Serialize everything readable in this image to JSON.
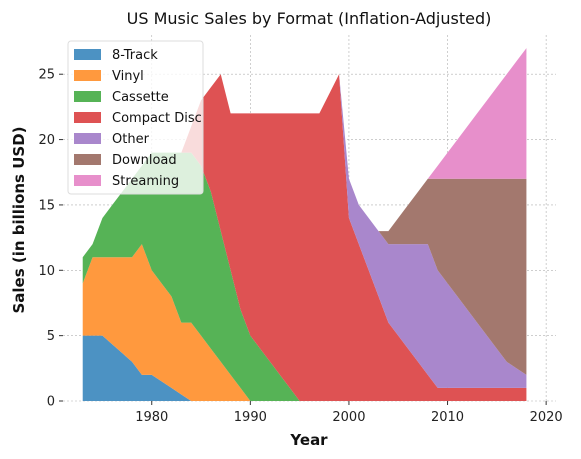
{
  "chart_data": {
    "type": "area",
    "stacked": true,
    "title": "US Music Sales by Format (Inflation-Adjusted)",
    "xlabel": "Year",
    "ylabel": "Sales (in billions USD)",
    "xlim": [
      1971,
      2021
    ],
    "ylim": [
      0,
      28
    ],
    "xticks": [
      1980,
      1990,
      2000,
      2010,
      2020
    ],
    "yticks": [
      0,
      5,
      10,
      15,
      20,
      25
    ],
    "grid": true,
    "legend_position": "top-left",
    "x": [
      1973,
      1974,
      1975,
      1976,
      1977,
      1978,
      1979,
      1980,
      1981,
      1982,
      1983,
      1984,
      1985,
      1986,
      1987,
      1988,
      1989,
      1990,
      1991,
      1992,
      1993,
      1994,
      1995,
      1996,
      1997,
      1998,
      1999,
      2000,
      2001,
      2002,
      2003,
      2004,
      2005,
      2006,
      2007,
      2008,
      2009,
      2010,
      2011,
      2012,
      2013,
      2014,
      2015,
      2016,
      2017,
      2018
    ],
    "series": [
      {
        "name": "8-Track",
        "color": "#4c92c3",
        "values": [
          5,
          5,
          5,
          4.33,
          3.67,
          3,
          2,
          2,
          1.5,
          1,
          0.5,
          0,
          0,
          0,
          0,
          0,
          0,
          0,
          0,
          0,
          0,
          0,
          0,
          0,
          0,
          0,
          0,
          0,
          0,
          0,
          0,
          0,
          0,
          0,
          0,
          0,
          0,
          0,
          0,
          0,
          0,
          0,
          0,
          0,
          0,
          0
        ]
      },
      {
        "name": "Vinyl",
        "color": "#ff993e",
        "values": [
          4,
          6,
          6,
          6.67,
          7.33,
          8,
          10,
          8,
          7.5,
          7,
          5.5,
          6,
          5,
          4,
          3,
          2,
          1,
          0,
          0,
          0,
          0,
          0,
          0,
          0,
          0,
          0,
          0,
          0,
          0,
          0,
          0,
          0,
          0,
          0,
          0,
          0,
          0,
          0,
          0,
          0,
          0,
          0,
          0,
          0,
          0,
          0
        ]
      },
      {
        "name": "Cassette",
        "color": "#56b356",
        "values": [
          2,
          1,
          3,
          4,
          5,
          6,
          6,
          9,
          10,
          11,
          13,
          13,
          13,
          12,
          10,
          8,
          6,
          5,
          4,
          3,
          2,
          1,
          0,
          0,
          0,
          0,
          0,
          0,
          0,
          0,
          0,
          0,
          0,
          0,
          0,
          0,
          0,
          0,
          0,
          0,
          0,
          0,
          0,
          0,
          0,
          0
        ]
      },
      {
        "name": "Compact Disc",
        "color": "#de5253",
        "values": [
          0,
          0,
          0,
          0,
          0,
          0,
          0,
          0,
          0,
          0,
          0,
          2,
          5,
          8,
          12,
          12,
          15,
          17,
          18,
          19,
          20,
          21,
          22,
          22,
          22,
          23.5,
          25,
          14,
          12,
          10,
          8,
          6,
          5,
          4,
          3,
          2,
          1,
          1,
          1,
          1,
          1,
          1,
          1,
          1,
          1,
          1
        ]
      },
      {
        "name": "Other",
        "color": "#a987cc",
        "values": [
          0,
          0,
          0,
          0,
          0,
          0,
          0,
          0,
          0,
          0,
          0,
          0,
          0,
          0,
          0,
          0,
          0,
          0,
          0,
          0,
          0,
          0,
          0,
          0,
          0,
          0,
          0,
          3,
          3,
          4,
          5,
          6,
          7,
          8,
          9,
          10,
          9,
          8,
          7,
          6,
          5,
          4,
          3,
          2,
          1.5,
          1
        ]
      },
      {
        "name": "Download",
        "color": "#a3786e",
        "values": [
          0,
          0,
          0,
          0,
          0,
          0,
          0,
          0,
          0,
          0,
          0,
          0,
          0,
          0,
          0,
          0,
          0,
          0,
          0,
          0,
          0,
          0,
          0,
          0,
          0,
          0,
          0,
          0,
          0,
          0,
          0,
          1,
          2,
          3,
          4,
          5,
          7,
          8,
          9,
          10,
          11,
          12,
          13,
          14,
          14.5,
          15
        ]
      },
      {
        "name": "Streaming",
        "color": "#e78fcb",
        "values": [
          0,
          0,
          0,
          0,
          0,
          0,
          0,
          0,
          0,
          0,
          0,
          0,
          0,
          0,
          0,
          0,
          0,
          0,
          0,
          0,
          0,
          0,
          0,
          0,
          0,
          0,
          0,
          0,
          0,
          0,
          0,
          0,
          0,
          0,
          0,
          0,
          1,
          2,
          3,
          4,
          5,
          6,
          7,
          8,
          9,
          10
        ]
      }
    ]
  }
}
